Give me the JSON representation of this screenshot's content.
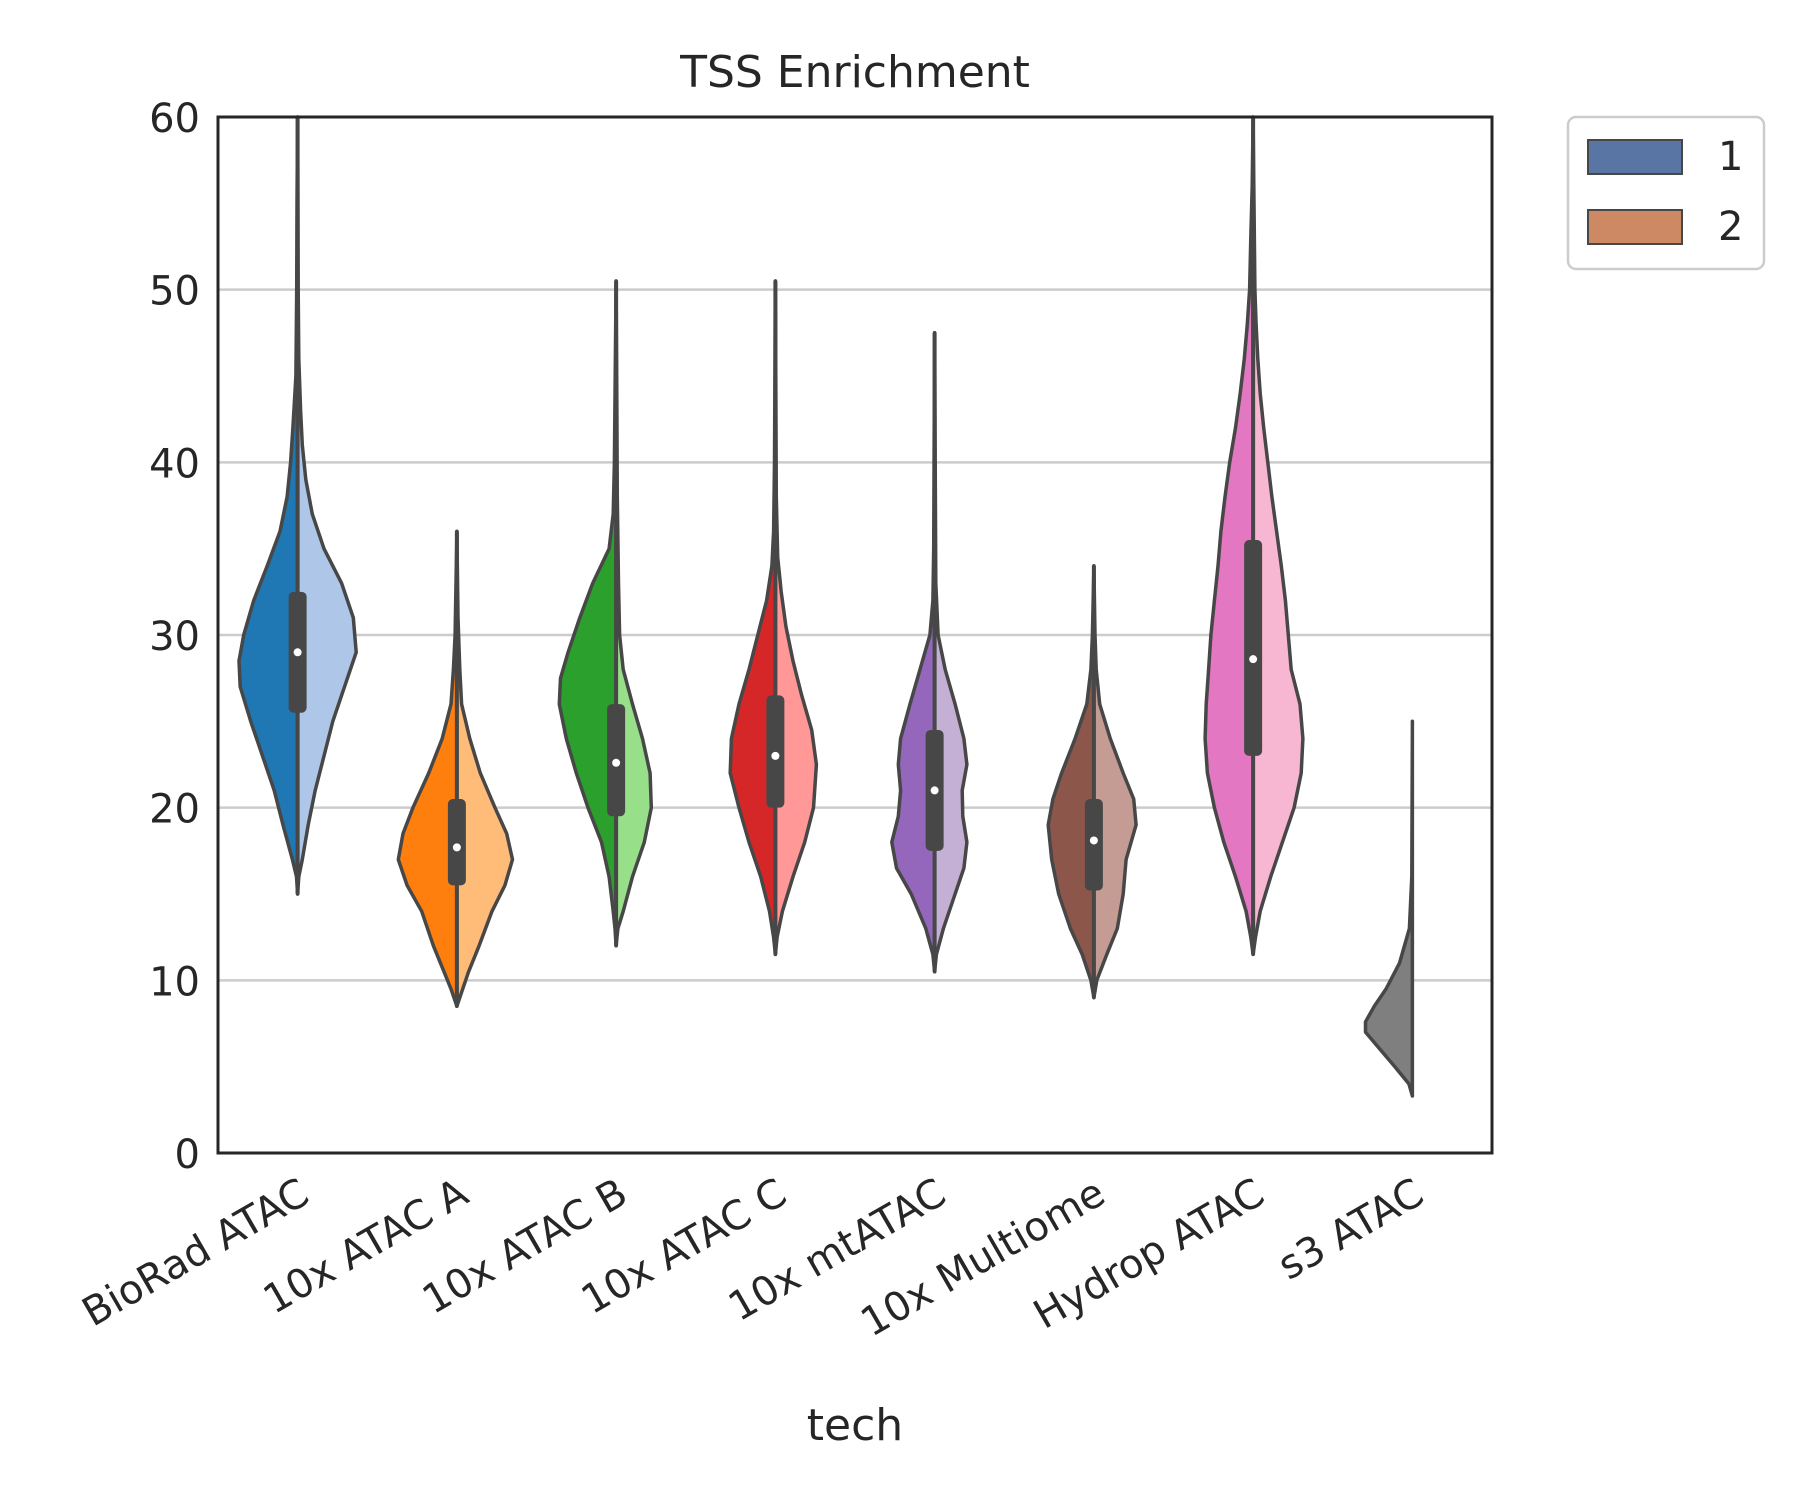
{
  "chart_data": {
    "type": "violin",
    "title": "TSS Enrichment",
    "xlabel": "tech",
    "ylabel": "",
    "ylim": [
      0,
      60
    ],
    "yticks": [
      0,
      10,
      20,
      30,
      40,
      50,
      60
    ],
    "grid": "horizontal",
    "legend": {
      "placement": "outside-top-right",
      "entries": [
        {
          "label": "1",
          "color": "#5975a4"
        },
        {
          "label": "2",
          "color": "#cc8963"
        }
      ]
    },
    "categories": [
      "BioRad ATAC",
      "10x ATAC A",
      "10x ATAC B",
      "10x ATAC C",
      "10x mtATAC",
      "10x Multiome",
      "Hydrop ATAC",
      "s3 ATAC"
    ],
    "groups": [
      {
        "tech": "BioRad ATAC",
        "color_left": "#1f77b4",
        "color_right": "#aec7e8",
        "median": 29,
        "q1": 25.5,
        "q3": 32.5,
        "left": [
          [
            15,
            0
          ],
          [
            16,
            0.02
          ],
          [
            17,
            0.09
          ],
          [
            19,
            0.25
          ],
          [
            21,
            0.4
          ],
          [
            23,
            0.6
          ],
          [
            25,
            0.8
          ],
          [
            27,
            0.98
          ],
          [
            28.5,
            1.0
          ],
          [
            30,
            0.92
          ],
          [
            32,
            0.75
          ],
          [
            34,
            0.52
          ],
          [
            36,
            0.3
          ],
          [
            38,
            0.18
          ],
          [
            40,
            0.12
          ],
          [
            42,
            0.08
          ],
          [
            45,
            0.03
          ],
          [
            50,
            0.015
          ],
          [
            55,
            0.01
          ],
          [
            60,
            0
          ]
        ],
        "right": [
          [
            15,
            0
          ],
          [
            16,
            0.02
          ],
          [
            17,
            0.08
          ],
          [
            19,
            0.18
          ],
          [
            21,
            0.3
          ],
          [
            23,
            0.45
          ],
          [
            25,
            0.6
          ],
          [
            27,
            0.8
          ],
          [
            29,
            1.0
          ],
          [
            31,
            0.95
          ],
          [
            33,
            0.75
          ],
          [
            35,
            0.45
          ],
          [
            37,
            0.25
          ],
          [
            39,
            0.14
          ],
          [
            41,
            0.08
          ],
          [
            43,
            0.05
          ],
          [
            46,
            0.02
          ],
          [
            50,
            0.01
          ],
          [
            60,
            0
          ]
        ]
      },
      {
        "tech": "10x ATAC A",
        "color_left": "#ff7f0e",
        "color_right": "#ffbb78",
        "median": 17.7,
        "q1": 15.5,
        "q3": 20.5,
        "left": [
          [
            8.5,
            0
          ],
          [
            9.5,
            0.1
          ],
          [
            10.5,
            0.22
          ],
          [
            12,
            0.4
          ],
          [
            14,
            0.6
          ],
          [
            15.5,
            0.85
          ],
          [
            17,
            1.0
          ],
          [
            18.5,
            0.92
          ],
          [
            20,
            0.75
          ],
          [
            22,
            0.48
          ],
          [
            24,
            0.25
          ],
          [
            26,
            0.1
          ],
          [
            28,
            0.06
          ],
          [
            30,
            0.03
          ],
          [
            33,
            0.015
          ],
          [
            36,
            0
          ]
        ],
        "right": [
          [
            8.5,
            0
          ],
          [
            9.5,
            0.1
          ],
          [
            10.5,
            0.2
          ],
          [
            12,
            0.38
          ],
          [
            14,
            0.6
          ],
          [
            15.5,
            0.82
          ],
          [
            17,
            0.95
          ],
          [
            18.5,
            0.85
          ],
          [
            20,
            0.65
          ],
          [
            22,
            0.4
          ],
          [
            24,
            0.22
          ],
          [
            26,
            0.08
          ],
          [
            28,
            0.05
          ],
          [
            31,
            0.02
          ],
          [
            36,
            0
          ]
        ]
      },
      {
        "tech": "10x ATAC B",
        "color_left": "#2ca02c",
        "color_right": "#98df8a",
        "median": 22.6,
        "q1": 19.5,
        "q3": 26,
        "left": [
          [
            12,
            0
          ],
          [
            13,
            0.02
          ],
          [
            14,
            0.05
          ],
          [
            16,
            0.12
          ],
          [
            18,
            0.25
          ],
          [
            20,
            0.48
          ],
          [
            22,
            0.68
          ],
          [
            24,
            0.85
          ],
          [
            26,
            0.97
          ],
          [
            27.5,
            0.95
          ],
          [
            29,
            0.82
          ],
          [
            31,
            0.62
          ],
          [
            33,
            0.4
          ],
          [
            35,
            0.12
          ],
          [
            37,
            0.05
          ],
          [
            40,
            0.03
          ],
          [
            45,
            0.015
          ],
          [
            50.5,
            0
          ]
        ],
        "right": [
          [
            12,
            0
          ],
          [
            13,
            0.03
          ],
          [
            14,
            0.12
          ],
          [
            16,
            0.28
          ],
          [
            18,
            0.48
          ],
          [
            20,
            0.6
          ],
          [
            22,
            0.58
          ],
          [
            24,
            0.45
          ],
          [
            26,
            0.28
          ],
          [
            28,
            0.12
          ],
          [
            30,
            0.06
          ],
          [
            33,
            0.04
          ],
          [
            38,
            0.02
          ],
          [
            45,
            0.01
          ],
          [
            50.5,
            0
          ]
        ]
      },
      {
        "tech": "10x ATAC C",
        "color_left": "#d62728",
        "color_right": "#ff9896",
        "median": 23,
        "q1": 20,
        "q3": 26.5,
        "left": [
          [
            11.5,
            0
          ],
          [
            12.5,
            0.03
          ],
          [
            14,
            0.1
          ],
          [
            16,
            0.25
          ],
          [
            18,
            0.45
          ],
          [
            20,
            0.62
          ],
          [
            22,
            0.77
          ],
          [
            24,
            0.75
          ],
          [
            26,
            0.62
          ],
          [
            28,
            0.45
          ],
          [
            30,
            0.3
          ],
          [
            32,
            0.15
          ],
          [
            34,
            0.06
          ],
          [
            36,
            0.03
          ],
          [
            40,
            0.015
          ],
          [
            50.5,
            0
          ]
        ],
        "right": [
          [
            11.5,
            0
          ],
          [
            12.5,
            0.03
          ],
          [
            14,
            0.12
          ],
          [
            16,
            0.3
          ],
          [
            18,
            0.5
          ],
          [
            20,
            0.65
          ],
          [
            22.5,
            0.7
          ],
          [
            24.5,
            0.62
          ],
          [
            26.5,
            0.45
          ],
          [
            28.5,
            0.3
          ],
          [
            30.5,
            0.18
          ],
          [
            32.5,
            0.1
          ],
          [
            34.5,
            0.04
          ],
          [
            38,
            0.015
          ],
          [
            50.5,
            0
          ]
        ]
      },
      {
        "tech": "10x mtATAC",
        "color_left": "#9467bd",
        "color_right": "#c5b0d5",
        "median": 21,
        "q1": 17.5,
        "q3": 24.5,
        "left": [
          [
            10.5,
            0
          ],
          [
            11.5,
            0.03
          ],
          [
            13,
            0.15
          ],
          [
            15,
            0.4
          ],
          [
            16.5,
            0.65
          ],
          [
            18,
            0.73
          ],
          [
            19.5,
            0.62
          ],
          [
            21,
            0.58
          ],
          [
            22.5,
            0.62
          ],
          [
            24,
            0.58
          ],
          [
            26,
            0.42
          ],
          [
            28,
            0.25
          ],
          [
            30,
            0.08
          ],
          [
            32,
            0.03
          ],
          [
            35,
            0.015
          ],
          [
            47.5,
            0
          ]
        ],
        "right": [
          [
            10.5,
            0
          ],
          [
            11.5,
            0.03
          ],
          [
            13,
            0.15
          ],
          [
            15,
            0.35
          ],
          [
            16.5,
            0.5
          ],
          [
            18,
            0.55
          ],
          [
            19.5,
            0.48
          ],
          [
            21,
            0.47
          ],
          [
            22.5,
            0.55
          ],
          [
            24,
            0.5
          ],
          [
            26,
            0.35
          ],
          [
            28,
            0.18
          ],
          [
            30,
            0.06
          ],
          [
            33,
            0.02
          ],
          [
            47.5,
            0
          ]
        ]
      },
      {
        "tech": "10x Multiome",
        "color_left": "#8c564b",
        "color_right": "#c49c94",
        "median": 18.1,
        "q1": 15.2,
        "q3": 20.5,
        "left": [
          [
            9,
            0
          ],
          [
            10,
            0.05
          ],
          [
            11.5,
            0.2
          ],
          [
            13,
            0.4
          ],
          [
            15,
            0.6
          ],
          [
            17,
            0.72
          ],
          [
            19,
            0.78
          ],
          [
            20.5,
            0.7
          ],
          [
            22,
            0.55
          ],
          [
            24,
            0.32
          ],
          [
            26,
            0.12
          ],
          [
            28,
            0.05
          ],
          [
            30,
            0.025
          ],
          [
            34,
            0
          ]
        ],
        "right": [
          [
            9,
            0
          ],
          [
            10,
            0.05
          ],
          [
            11.5,
            0.22
          ],
          [
            13,
            0.4
          ],
          [
            15,
            0.5
          ],
          [
            17,
            0.55
          ],
          [
            19,
            0.72
          ],
          [
            20.5,
            0.68
          ],
          [
            22,
            0.5
          ],
          [
            24,
            0.28
          ],
          [
            26,
            0.1
          ],
          [
            28,
            0.04
          ],
          [
            30,
            0.02
          ],
          [
            34,
            0
          ]
        ]
      },
      {
        "tech": "Hydrop ATAC",
        "color_left": "#e377c2",
        "color_right": "#f7b6d2",
        "median": 28.6,
        "q1": 23,
        "q3": 35.5,
        "left": [
          [
            11.5,
            0
          ],
          [
            12.5,
            0.04
          ],
          [
            14,
            0.12
          ],
          [
            16,
            0.3
          ],
          [
            18,
            0.5
          ],
          [
            20,
            0.66
          ],
          [
            22,
            0.78
          ],
          [
            24,
            0.82
          ],
          [
            26,
            0.8
          ],
          [
            28,
            0.76
          ],
          [
            30,
            0.72
          ],
          [
            32,
            0.66
          ],
          [
            34,
            0.6
          ],
          [
            36,
            0.55
          ],
          [
            38,
            0.48
          ],
          [
            40,
            0.4
          ],
          [
            42,
            0.3
          ],
          [
            44,
            0.22
          ],
          [
            46,
            0.15
          ],
          [
            48,
            0.1
          ],
          [
            50,
            0.06
          ],
          [
            53,
            0.04
          ],
          [
            56,
            0.015
          ],
          [
            60,
            0
          ]
        ],
        "right": [
          [
            11.5,
            0
          ],
          [
            12.5,
            0.04
          ],
          [
            14,
            0.12
          ],
          [
            16,
            0.3
          ],
          [
            18,
            0.5
          ],
          [
            20,
            0.7
          ],
          [
            22,
            0.82
          ],
          [
            24,
            0.85
          ],
          [
            26,
            0.8
          ],
          [
            28,
            0.65
          ],
          [
            30,
            0.6
          ],
          [
            32,
            0.55
          ],
          [
            34,
            0.48
          ],
          [
            36,
            0.4
          ],
          [
            38,
            0.32
          ],
          [
            40,
            0.25
          ],
          [
            42,
            0.18
          ],
          [
            44,
            0.12
          ],
          [
            46,
            0.08
          ],
          [
            48,
            0.05
          ],
          [
            50,
            0.03
          ],
          [
            55,
            0.015
          ],
          [
            60,
            0
          ]
        ]
      },
      {
        "tech": "s3 ATAC",
        "color_left": "#7f7f7f",
        "color_right": "#c7c7c7",
        "median": null,
        "q1": null,
        "q3": null,
        "left": [
          [
            3.3,
            0
          ],
          [
            4,
            0.06
          ],
          [
            5,
            0.3
          ],
          [
            6,
            0.55
          ],
          [
            7,
            0.8
          ],
          [
            7.6,
            0.8
          ],
          [
            8.5,
            0.65
          ],
          [
            9.5,
            0.45
          ],
          [
            11,
            0.22
          ],
          [
            13,
            0.05
          ],
          [
            16,
            0.01
          ],
          [
            25,
            0
          ]
        ],
        "right": []
      }
    ]
  }
}
